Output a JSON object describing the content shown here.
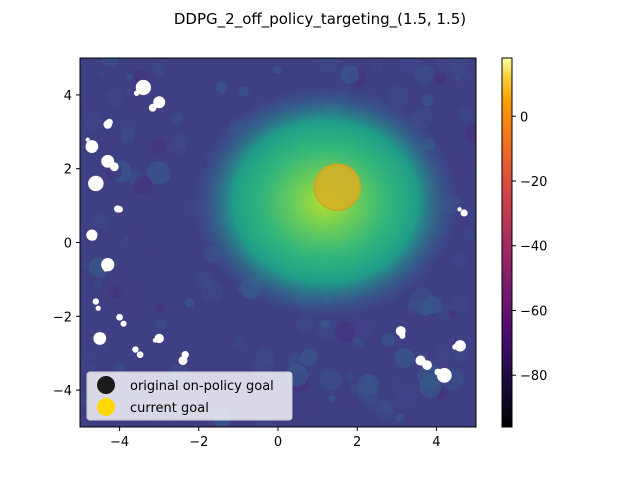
{
  "chart_data": {
    "type": "heatmap",
    "title": "DDPG_2_off_policy_targeting_(1.5, 1.5)",
    "xlabel": "",
    "ylabel": "",
    "xlim": [
      -5,
      5
    ],
    "ylim": [
      -5,
      5
    ],
    "x_ticks": [
      -4,
      -2,
      0,
      2,
      4
    ],
    "y_ticks": [
      -4,
      -2,
      0,
      2,
      4
    ],
    "x_tick_labels": [
      "−4",
      "−2",
      "0",
      "2",
      "4"
    ],
    "y_tick_labels": [
      "−4",
      "−2",
      "0",
      "2",
      "4"
    ],
    "colorbar": {
      "colormap": "inferno",
      "range": [
        -96,
        18
      ],
      "ticks": [
        0,
        -20,
        -40,
        -60,
        -80
      ],
      "tick_labels": [
        "0",
        "−20",
        "−40",
        "−60",
        "−80"
      ]
    },
    "value_field": {
      "colormap": "viridis",
      "background_value": -75,
      "peak_value": 10,
      "peak_center": [
        1.2,
        1.1
      ]
    },
    "goal_marker": {
      "center": [
        1.5,
        1.5
      ],
      "color": "#d4b025"
    },
    "legend": {
      "location": "lower left",
      "entries": [
        {
          "label": "original on-policy goal",
          "color": "#1a1a1a"
        },
        {
          "label": "current goal",
          "color": "#ffd700"
        }
      ]
    },
    "grid": false
  }
}
